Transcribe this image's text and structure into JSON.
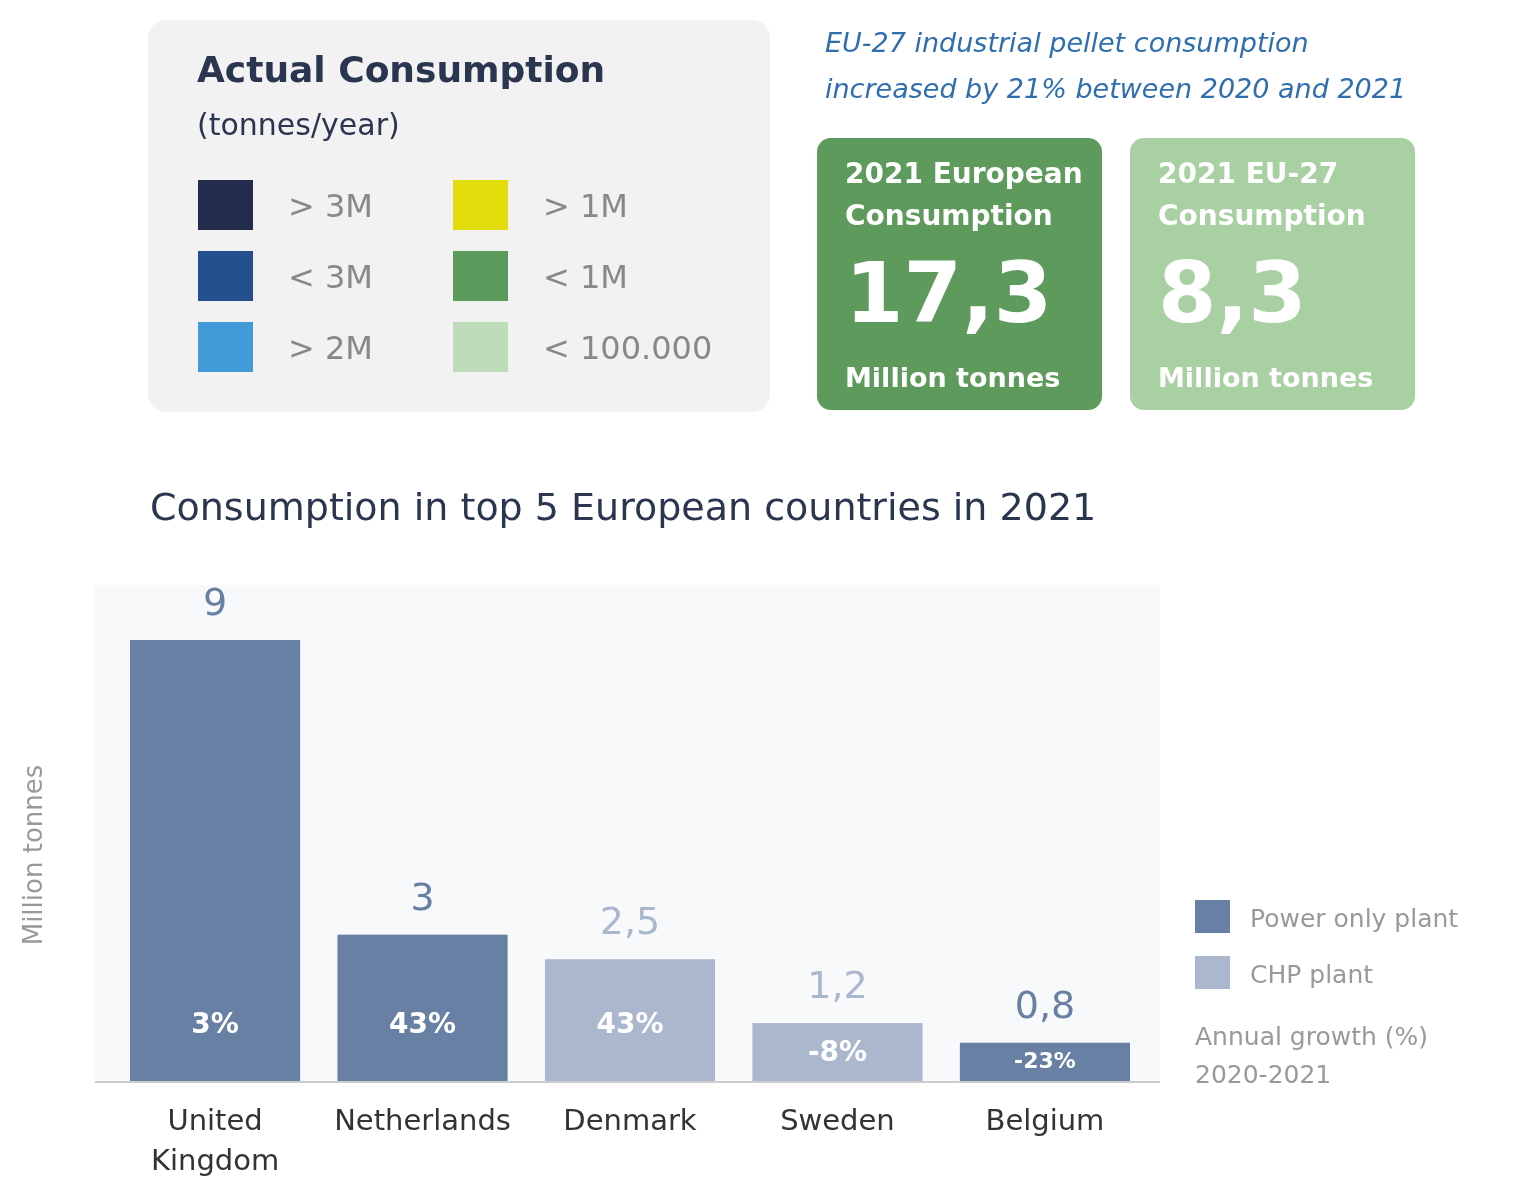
{
  "chart_data": [
    {
      "type": "other",
      "title": "Actual Consumption",
      "subtitle": "(tonnes/year)",
      "categories": [
        "> 3M",
        "> 1M",
        "< 3M",
        "< 1M",
        "> 2M",
        "< 100.000"
      ],
      "colors": [
        "#232c4c",
        "#e3dc0c",
        "#234f8c",
        "#5b9b5b",
        "#419bd9",
        "#bedcb9"
      ],
      "annotations": [
        "EU-27 industrial pellet consumption increased by 21%  between 2020 and 2021",
        "2021 European Consumption",
        "17,3",
        "Million tonnes",
        "2021 EU-27 Consumption",
        "8,3",
        "Million tonnes"
      ]
    },
    {
      "type": "bar",
      "title": "Consumption  in top 5 European countries in 2021",
      "ylabel": "Million tonnes",
      "stacked": true,
      "legend": "right",
      "categories": [
        "United Kingdom",
        "Netherlands",
        "Denmark",
        "Sweden",
        "Belgium"
      ],
      "series": [
        {
          "name": "Power only plant",
          "color": "#6880a4",
          "values": [
            9,
            3,
            null,
            null,
            0.8
          ],
          "value_labels": [
            "9",
            "3",
            null,
            null,
            "0,8"
          ]
        },
        {
          "name": "CHP plant",
          "color": "#aab7cd",
          "values": [
            null,
            null,
            2.5,
            1.2,
            null
          ],
          "value_labels": [
            null,
            null,
            "2,5",
            "1,2",
            null
          ]
        }
      ],
      "annotations": [
        "3%",
        "43%",
        "43%",
        "-8%",
        "-23%",
        "Annual growth (%) 2020-2021"
      ]
    }
  ]
}
